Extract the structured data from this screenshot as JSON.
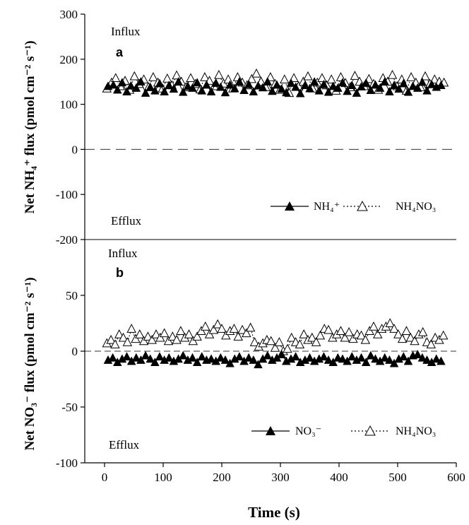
{
  "chart_data": [
    {
      "panel_label": "a",
      "type": "scatter",
      "xlim": [
        0,
        600
      ],
      "ylim": [
        -200,
        300
      ],
      "yticks": [
        -200,
        -100,
        0,
        100,
        200,
        300
      ],
      "ytick_labels": [
        "-200",
        "-100",
        "0",
        "100",
        "200",
        "300"
      ],
      "ylabel": "Net NH₄⁺ flux (pmol cm⁻² s⁻¹)",
      "annotations": {
        "top": "Influx",
        "bottom": "Efflux"
      },
      "reference_line": 0,
      "legend": {
        "placement": "right"
      },
      "series": [
        {
          "name": "NH₄⁺",
          "marker": "filled-triangle",
          "line": "solid",
          "color": "#000000",
          "x": [
            6,
            15,
            22,
            30,
            38,
            45,
            54,
            62,
            70,
            78,
            86,
            94,
            102,
            110,
            118,
            126,
            134,
            142,
            150,
            158,
            166,
            174,
            182,
            190,
            198,
            206,
            214,
            222,
            230,
            238,
            246,
            254,
            262,
            270,
            278,
            286,
            294,
            302,
            310,
            318,
            326,
            334,
            342,
            350,
            358,
            366,
            374,
            382,
            390,
            398,
            406,
            414,
            422,
            430,
            438,
            446,
            454,
            462,
            470,
            478,
            486,
            494,
            502,
            510,
            518,
            526,
            534,
            542,
            550,
            558,
            566,
            574
          ],
          "y": [
            140,
            143,
            132,
            148,
            128,
            141,
            136,
            150,
            125,
            138,
            130,
            146,
            128,
            142,
            134,
            150,
            127,
            140,
            136,
            148,
            130,
            143,
            128,
            147,
            138,
            126,
            143,
            135,
            150,
            131,
            144,
            128,
            141,
            137,
            150,
            129,
            143,
            134,
            126,
            147,
            138,
            124,
            142,
            135,
            150,
            130,
            144,
            127,
            140,
            136,
            148,
            129,
            142,
            125,
            139,
            147,
            131,
            143,
            136,
            150,
            128,
            142,
            134,
            146,
            127,
            140,
            136,
            149,
            130,
            144,
            138,
            142
          ]
        },
        {
          "name": "NH₄NO₃",
          "marker": "open-triangle",
          "line": "dotted",
          "color": "#000000",
          "x": [
            4,
            12,
            19,
            27,
            35,
            43,
            51,
            59,
            67,
            75,
            83,
            91,
            99,
            107,
            115,
            123,
            131,
            139,
            147,
            155,
            163,
            171,
            179,
            187,
            195,
            203,
            211,
            219,
            227,
            235,
            243,
            251,
            259,
            267,
            275,
            283,
            291,
            299,
            307,
            315,
            323,
            331,
            339,
            347,
            355,
            363,
            371,
            379,
            387,
            395,
            403,
            411,
            419,
            427,
            435,
            443,
            451,
            459,
            467,
            475,
            483,
            491,
            499,
            507,
            515,
            523,
            531,
            539,
            547,
            555,
            563,
            571,
            579
          ],
          "y": [
            135,
            148,
            158,
            140,
            152,
            132,
            162,
            145,
            155,
            138,
            160,
            148,
            135,
            157,
            142,
            164,
            150,
            138,
            158,
            145,
            133,
            160,
            152,
            140,
            165,
            146,
            155,
            135,
            160,
            148,
            142,
            156,
            168,
            150,
            138,
            160,
            145,
            132,
            155,
            125,
            158,
            140,
            150,
            162,
            135,
            148,
            158,
            142,
            155,
            130,
            160,
            147,
            138,
            163,
            150,
            140,
            156,
            145,
            132,
            158,
            150,
            165,
            140,
            155,
            130,
            160,
            148,
            138,
            162,
            145,
            155,
            150,
            148
          ]
        }
      ]
    },
    {
      "panel_label": "b",
      "type": "scatter",
      "xlim": [
        0,
        600
      ],
      "ylim": [
        -100,
        100
      ],
      "xticks": [
        0,
        100,
        200,
        300,
        400,
        500,
        600
      ],
      "xtick_labels": [
        "0",
        "100",
        "200",
        "300",
        "400",
        "500",
        "600"
      ],
      "yticks": [
        -100,
        -50,
        0,
        50
      ],
      "ytick_labels": [
        "-100",
        "-50",
        "0",
        "50"
      ],
      "xlabel": "Time (s)",
      "ylabel": "Net NO₃⁻ flux (pmol cm⁻² s⁻¹)",
      "annotations": {
        "top": "Influx",
        "bottom": "Efflux"
      },
      "reference_line": 0,
      "legend": {
        "placement": "bottom-right"
      },
      "series": [
        {
          "name": "NO₃⁻",
          "marker": "filled-triangle",
          "line": "solid",
          "color": "#000000",
          "x": [
            6,
            14,
            22,
            30,
            38,
            46,
            54,
            62,
            70,
            78,
            86,
            94,
            102,
            110,
            118,
            126,
            134,
            142,
            150,
            158,
            166,
            174,
            182,
            190,
            198,
            206,
            214,
            222,
            230,
            238,
            246,
            254,
            262,
            270,
            278,
            286,
            294,
            302,
            310,
            318,
            326,
            334,
            342,
            350,
            358,
            366,
            374,
            382,
            390,
            398,
            406,
            414,
            422,
            430,
            438,
            446,
            454,
            462,
            470,
            478,
            486,
            494,
            502,
            510,
            518,
            526,
            534,
            542,
            550,
            558,
            566,
            574
          ],
          "y": [
            -8,
            -6,
            -10,
            -7,
            -5,
            -9,
            -6,
            -8,
            -4,
            -7,
            -10,
            -5,
            -8,
            -6,
            -9,
            -7,
            -4,
            -8,
            -6,
            -10,
            -5,
            -8,
            -7,
            -9,
            -6,
            -8,
            -11,
            -7,
            -5,
            -9,
            -6,
            -8,
            -12,
            -7,
            -4,
            -8,
            -6,
            -3,
            -9,
            -7,
            -5,
            -10,
            -8,
            -6,
            -9,
            -7,
            -5,
            -8,
            -10,
            -6,
            -7,
            -9,
            -5,
            -8,
            -6,
            -10,
            -4,
            -7,
            -9,
            -6,
            -8,
            -11,
            -7,
            -5,
            -9,
            -4,
            -3,
            -6,
            -8,
            -10,
            -7,
            -9
          ]
        },
        {
          "name": "NH₄NO₃",
          "marker": "open-triangle",
          "line": "dotted",
          "color": "#000000",
          "x": [
            4,
            11,
            18,
            25,
            32,
            39,
            46,
            53,
            60,
            67,
            74,
            81,
            88,
            95,
            102,
            109,
            116,
            123,
            130,
            137,
            144,
            151,
            158,
            165,
            172,
            179,
            186,
            193,
            200,
            207,
            214,
            221,
            228,
            235,
            242,
            249,
            256,
            263,
            270,
            277,
            284,
            291,
            298,
            305,
            312,
            319,
            326,
            333,
            340,
            347,
            354,
            361,
            368,
            375,
            382,
            389,
            396,
            403,
            410,
            417,
            424,
            431,
            438,
            445,
            452,
            459,
            466,
            473,
            480,
            487,
            494,
            501,
            508,
            515,
            522,
            529,
            536,
            543,
            550,
            557,
            564,
            571,
            578
          ],
          "y": [
            7,
            10,
            6,
            15,
            12,
            8,
            20,
            11,
            15,
            9,
            13,
            10,
            15,
            12,
            16,
            9,
            13,
            10,
            18,
            12,
            15,
            9,
            13,
            18,
            22,
            15,
            19,
            24,
            20,
            14,
            18,
            20,
            13,
            19,
            16,
            21,
            8,
            4,
            7,
            10,
            9,
            3,
            8,
            0,
            2,
            12,
            8,
            6,
            15,
            10,
            12,
            8,
            14,
            20,
            19,
            12,
            15,
            18,
            12,
            17,
            11,
            15,
            14,
            10,
            18,
            22,
            15,
            20,
            22,
            25,
            20,
            15,
            11,
            18,
            12,
            9,
            15,
            17,
            8,
            6,
            12,
            10,
            14
          ]
        }
      ]
    }
  ]
}
